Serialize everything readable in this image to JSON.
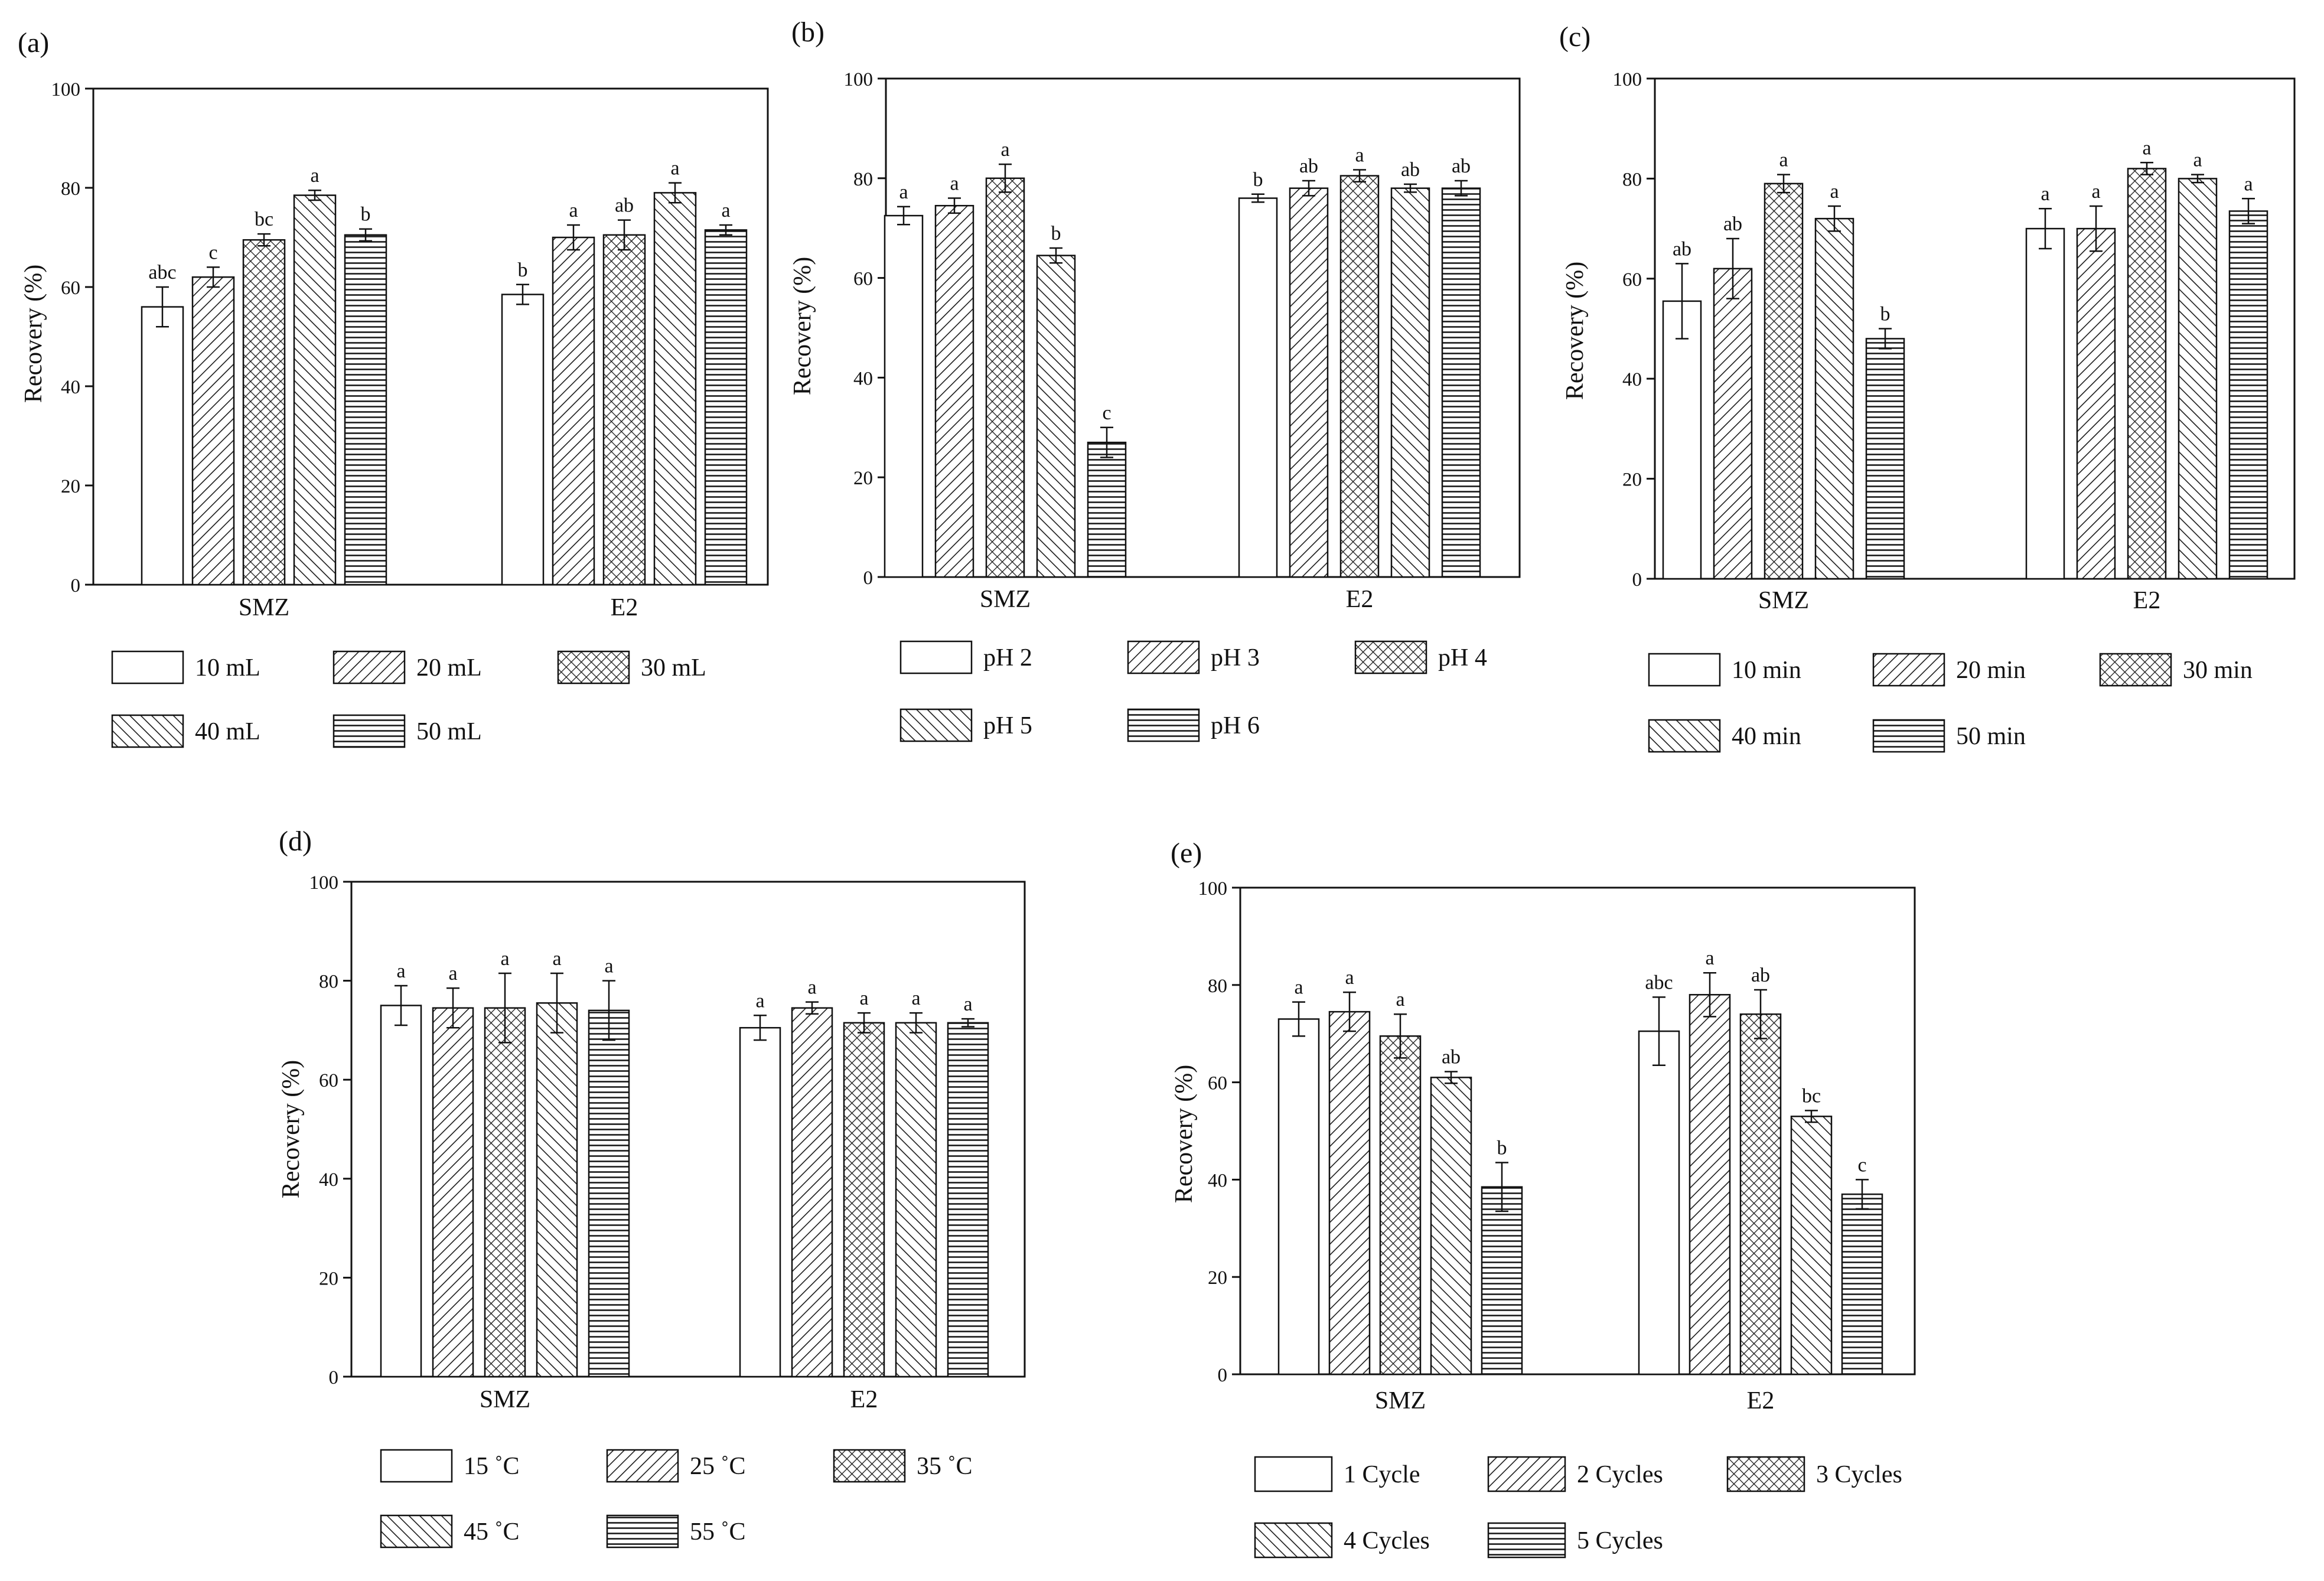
{
  "figure": {
    "panel_count": 5,
    "patterns": [
      "none",
      "diagonal-right",
      "crosshatch",
      "diagonal-left",
      "horizontal"
    ]
  },
  "chart_data": [
    {
      "type": "bar",
      "panel_label": "(a)",
      "title": "",
      "xlabel": "",
      "ylabel": "Recovery (%)",
      "ylim": [
        0,
        100
      ],
      "yticks": [
        "0",
        "20",
        "40",
        "60",
        "80",
        "100"
      ],
      "categories": [
        "SMZ",
        "E2"
      ],
      "series": [
        {
          "name": "10 mL",
          "values": [
            56,
            58.5
          ],
          "errors": [
            4,
            2
          ],
          "letters": [
            "abc",
            "b"
          ]
        },
        {
          "name": "20 mL",
          "values": [
            62,
            70
          ],
          "errors": [
            2,
            2.5
          ],
          "letters": [
            "c",
            "a"
          ]
        },
        {
          "name": "30 mL",
          "values": [
            69.5,
            70.5
          ],
          "errors": [
            1.2,
            3
          ],
          "letters": [
            "bc",
            "ab"
          ]
        },
        {
          "name": "40 mL",
          "values": [
            78.5,
            79
          ],
          "errors": [
            1,
            2
          ],
          "letters": [
            "a",
            "a"
          ]
        },
        {
          "name": "50 mL",
          "values": [
            70.5,
            71.5
          ],
          "errors": [
            1.2,
            1
          ],
          "letters": [
            "b",
            "a"
          ]
        }
      ]
    },
    {
      "type": "bar",
      "panel_label": "(b)",
      "title": "",
      "xlabel": "",
      "ylabel": "Recovery (%)",
      "ylim": [
        0,
        100
      ],
      "yticks": [
        "0",
        "20",
        "40",
        "60",
        "80",
        "100"
      ],
      "categories": [
        "SMZ",
        "E2"
      ],
      "series": [
        {
          "name": "pH 2",
          "values": [
            72.5,
            76
          ],
          "errors": [
            1.8,
            0.8
          ],
          "letters": [
            "a",
            "b"
          ]
        },
        {
          "name": "pH 3",
          "values": [
            74.5,
            78
          ],
          "errors": [
            1.5,
            1.5
          ],
          "letters": [
            "a",
            "ab"
          ]
        },
        {
          "name": "pH 4",
          "values": [
            80,
            80.5
          ],
          "errors": [
            2.8,
            1.2
          ],
          "letters": [
            "a",
            "a"
          ]
        },
        {
          "name": "pH 5",
          "values": [
            64.5,
            78
          ],
          "errors": [
            1.5,
            0.8
          ],
          "letters": [
            "b",
            "ab"
          ]
        },
        {
          "name": "pH 6",
          "values": [
            27,
            78
          ],
          "errors": [
            3,
            1.5
          ],
          "letters": [
            "c",
            "ab"
          ]
        }
      ]
    },
    {
      "type": "bar",
      "panel_label": "(c)",
      "title": "",
      "xlabel": "",
      "ylabel": "Recovery (%)",
      "ylim": [
        0,
        100
      ],
      "yticks": [
        "0",
        "20",
        "40",
        "60",
        "80",
        "100"
      ],
      "categories": [
        "SMZ",
        "E2"
      ],
      "series": [
        {
          "name": "10 min",
          "values": [
            55.5,
            70
          ],
          "errors": [
            7.5,
            4
          ],
          "letters": [
            "ab",
            "a"
          ]
        },
        {
          "name": "20 min",
          "values": [
            62,
            70
          ],
          "errors": [
            6,
            4.5
          ],
          "letters": [
            "ab",
            "a"
          ]
        },
        {
          "name": "30 min",
          "values": [
            79,
            82
          ],
          "errors": [
            1.8,
            1.2
          ],
          "letters": [
            "a",
            "a"
          ]
        },
        {
          "name": "40 min",
          "values": [
            72,
            80
          ],
          "errors": [
            2.5,
            0.8
          ],
          "letters": [
            "a",
            "a"
          ]
        },
        {
          "name": "50 min",
          "values": [
            48,
            73.5
          ],
          "errors": [
            2,
            2.5
          ],
          "letters": [
            "b",
            "a"
          ]
        }
      ]
    },
    {
      "type": "bar",
      "panel_label": "(d)",
      "title": "",
      "xlabel": "",
      "ylabel": "Recovery (%)",
      "ylim": [
        0,
        100
      ],
      "yticks": [
        "0",
        "20",
        "40",
        "60",
        "80",
        "100"
      ],
      "categories": [
        "SMZ",
        "E2"
      ],
      "series": [
        {
          "name": "15 ˚C",
          "values": [
            75,
            70.5
          ],
          "errors": [
            4,
            2.5
          ],
          "letters": [
            "a",
            "a"
          ]
        },
        {
          "name": "25 ˚C",
          "values": [
            74.5,
            74.5
          ],
          "errors": [
            4,
            1.2
          ],
          "letters": [
            "a",
            "a"
          ]
        },
        {
          "name": "35 ˚C",
          "values": [
            74.5,
            71.5
          ],
          "errors": [
            7,
            2
          ],
          "letters": [
            "a",
            "a"
          ]
        },
        {
          "name": "45 ˚C",
          "values": [
            75.5,
            71.5
          ],
          "errors": [
            6,
            2
          ],
          "letters": [
            "a",
            "a"
          ]
        },
        {
          "name": "55 ˚C",
          "values": [
            74,
            71.5
          ],
          "errors": [
            6,
            0.8
          ],
          "letters": [
            "a",
            "a"
          ]
        }
      ]
    },
    {
      "type": "bar",
      "panel_label": "(e)",
      "title": "",
      "xlabel": "",
      "ylabel": "Recovery (%)",
      "ylim": [
        0,
        100
      ],
      "yticks": [
        "0",
        "20",
        "40",
        "60",
        "80",
        "100"
      ],
      "categories": [
        "SMZ",
        "E2"
      ],
      "series": [
        {
          "name": "1 Cycle",
          "values": [
            73,
            70.5
          ],
          "errors": [
            3.5,
            7
          ],
          "letters": [
            "a",
            "abc"
          ]
        },
        {
          "name": "2 Cycles",
          "values": [
            74.5,
            78
          ],
          "errors": [
            4,
            4.5
          ],
          "letters": [
            "a",
            "a"
          ]
        },
        {
          "name": "3 Cycles",
          "values": [
            69.5,
            74
          ],
          "errors": [
            4.5,
            5
          ],
          "letters": [
            "a",
            "ab"
          ]
        },
        {
          "name": "4 Cycles",
          "values": [
            61,
            53
          ],
          "errors": [
            1.2,
            1.2
          ],
          "letters": [
            "ab",
            "bc"
          ]
        },
        {
          "name": "5 Cycles",
          "values": [
            38.5,
            37
          ],
          "errors": [
            5,
            3
          ],
          "letters": [
            "b",
            "c"
          ]
        }
      ]
    }
  ]
}
